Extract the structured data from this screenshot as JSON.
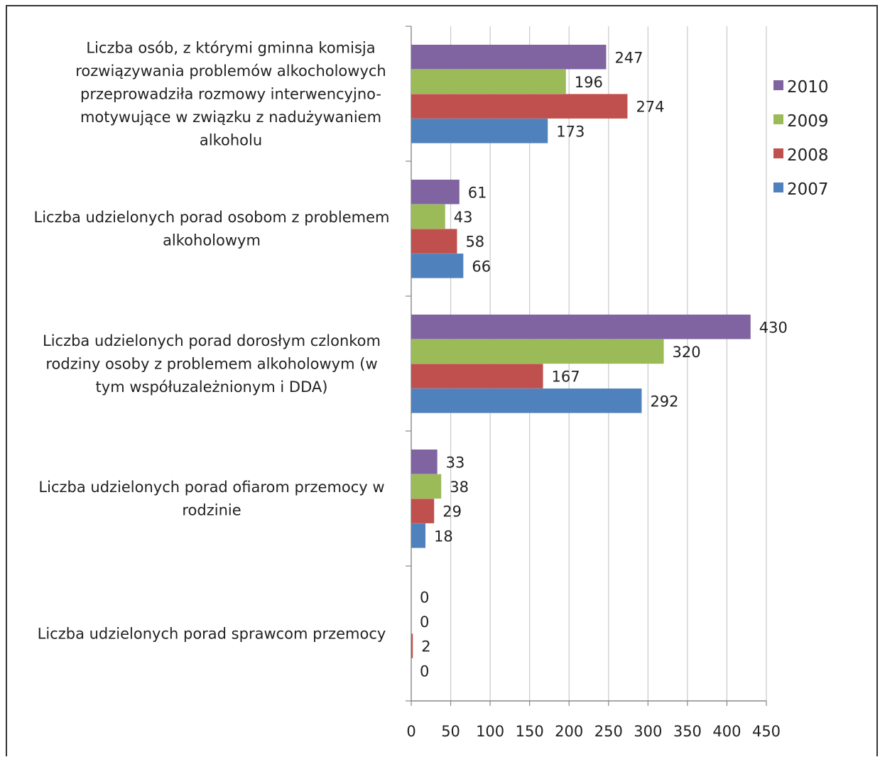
{
  "chart_data": {
    "type": "bar",
    "orientation": "horizontal",
    "title": "",
    "xlabel": "",
    "ylabel": "",
    "xlim": [
      0,
      450
    ],
    "x_ticks": [
      0,
      50,
      100,
      150,
      200,
      250,
      300,
      350,
      400,
      450
    ],
    "grid": "vertical",
    "legend_position": "right",
    "categories": [
      [
        "Liczba osób, z którymi gminna komisja",
        "rozwiązywania problemów alkocholowych",
        "przeprowadziła rozmowy interwencyjno-",
        "motywujące w związku z nadużywaniem",
        "alkoholu"
      ],
      [
        "Liczba udzielonych porad osobom z problemem",
        "alkoholowym"
      ],
      [
        "Liczba udzielonych porad dorosłym czlonkom",
        "rodziny osoby z problemem alkoholowym (w",
        "tym współuzależnionym i DDA)"
      ],
      [
        "Liczba udzielonych porad ofiarom przemocy w",
        "rodzinie"
      ],
      [
        "Liczba udzielonych porad sprawcom przemocy"
      ]
    ],
    "series": [
      {
        "name": "2010",
        "color": "#8064a2",
        "values": [
          247,
          61,
          430,
          33,
          0
        ]
      },
      {
        "name": "2009",
        "color": "#9bbb59",
        "values": [
          196,
          43,
          320,
          38,
          0
        ]
      },
      {
        "name": "2008",
        "color": "#c0504d",
        "values": [
          274,
          58,
          167,
          29,
          2
        ]
      },
      {
        "name": "2007",
        "color": "#4f81bd",
        "values": [
          173,
          66,
          292,
          18,
          0
        ]
      }
    ]
  }
}
